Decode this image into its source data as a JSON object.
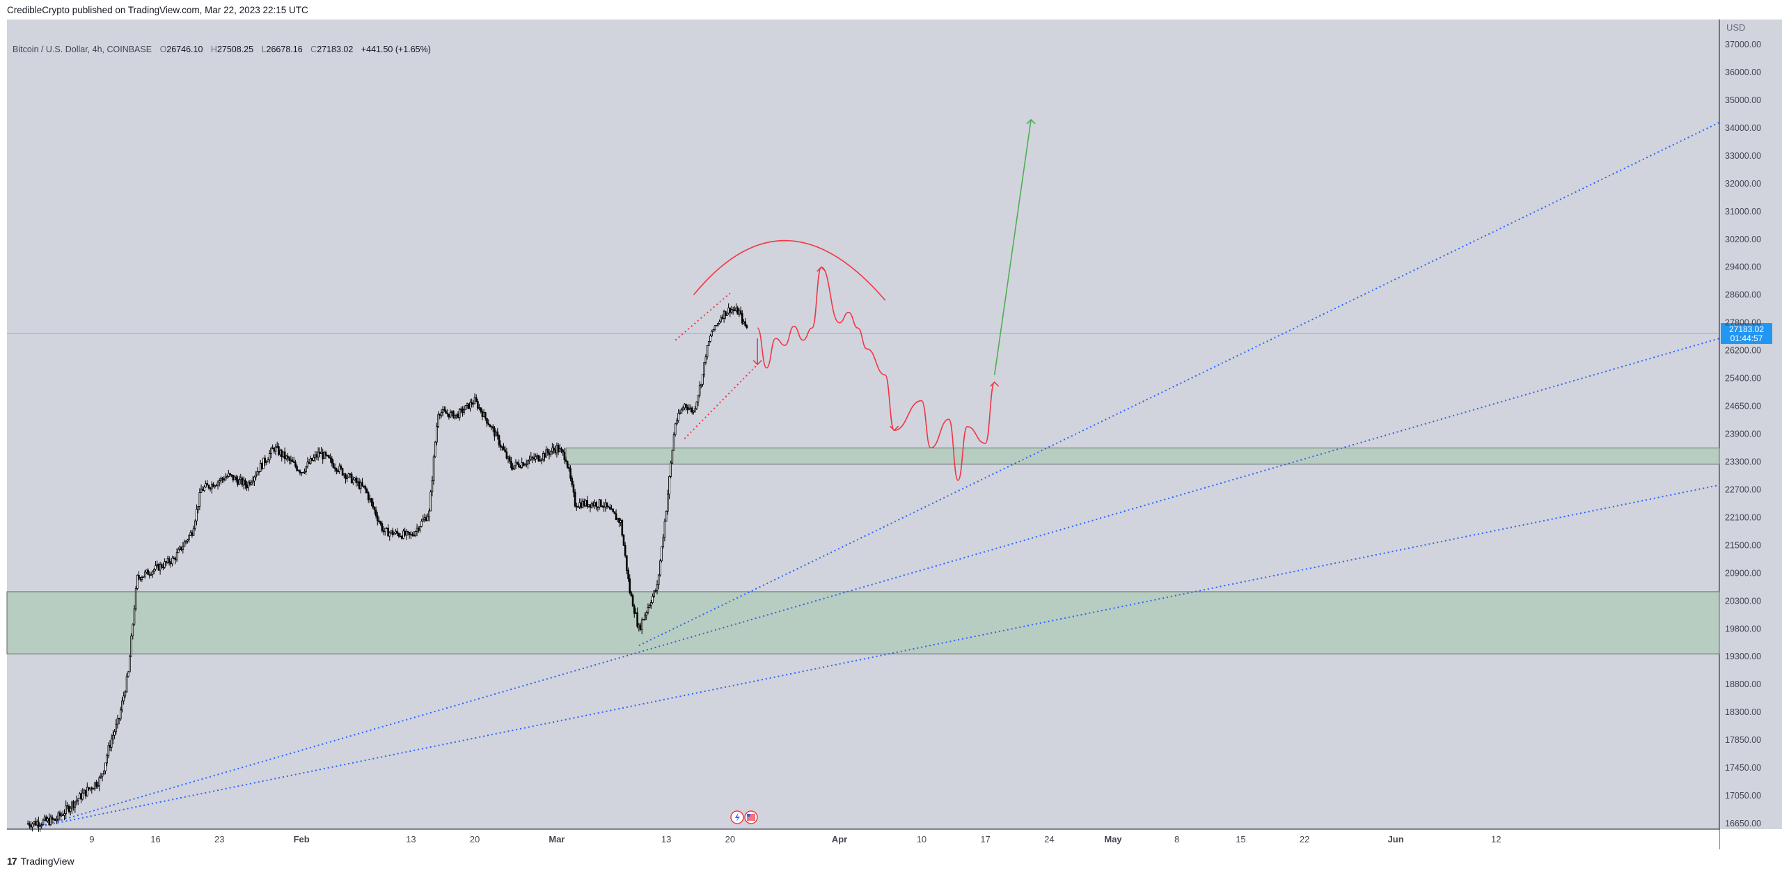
{
  "header": {
    "published_by": "CredibleCrypto published on TradingView.com, Mar 22, 2023 22:15 UTC"
  },
  "legend": {
    "symbol": "Bitcoin / U.S. Dollar, 4h, COINBASE",
    "open_key": "O",
    "open": "26746.10",
    "high_key": "H",
    "high": "27508.25",
    "low_key": "L",
    "low": "26678.16",
    "close_key": "C",
    "close": "27183.02",
    "change": "+441.50 (+1.65%)"
  },
  "footer": {
    "brand": "TradingView",
    "brand_icon": "tradingview-logo-icon"
  },
  "colors": {
    "chart_bg": "#d1d4dd",
    "zone_fill": "#b8cdc2",
    "trendline": "#2962ff",
    "projection": "#f23645",
    "target": "#4caf50",
    "price_tag": "#2196f3"
  },
  "chart_data": {
    "type": "candlestick",
    "instrument": "Bitcoin / U.S. Dollar",
    "interval": "4h",
    "exchange": "COINBASE",
    "currency": "USD",
    "ylim": [
      16500,
      37600
    ],
    "y_ticks": [
      "37000.00",
      "36000.00",
      "35000.00",
      "34000.00",
      "33000.00",
      "32000.00",
      "31000.00",
      "30200.00",
      "29400.00",
      "28600.00",
      "27800.00",
      "26200.00",
      "25400.00",
      "24650.00",
      "23900.00",
      "23300.00",
      "22700.00",
      "22100.00",
      "21500.00",
      "20900.00",
      "20300.00",
      "19800.00",
      "19300.00",
      "18800.00",
      "18300.00",
      "17850.00",
      "17450.00",
      "17050.00",
      "16650.00"
    ],
    "x_ticks": [
      "9",
      "16",
      "23",
      "Feb",
      "13",
      "20",
      "Mar",
      "13",
      "20",
      "Apr",
      "10",
      "17",
      "24",
      "May",
      "8",
      "15",
      "22",
      "Jun",
      "12"
    ],
    "last_price": {
      "value": 27183.02,
      "label": "27183.02",
      "countdown": "01:44:57"
    },
    "support_zones": [
      {
        "low": 23250,
        "high": 23600
      },
      {
        "low": 19350,
        "high": 20500
      }
    ],
    "price_path": [
      [
        "2023-01-02",
        16650
      ],
      [
        "2023-01-05",
        16700
      ],
      [
        "2023-01-07",
        16950
      ],
      [
        "2023-01-10",
        17300
      ],
      [
        "2023-01-11",
        17800
      ],
      [
        "2023-01-12",
        18200
      ],
      [
        "2023-01-13",
        19000
      ],
      [
        "2023-01-14",
        20800
      ],
      [
        "2023-01-16",
        21000
      ],
      [
        "2023-01-18",
        21200
      ],
      [
        "2023-01-20",
        21800
      ],
      [
        "2023-01-21",
        22700
      ],
      [
        "2023-01-24",
        23000
      ],
      [
        "2023-01-26",
        22800
      ],
      [
        "2023-01-29",
        23600
      ],
      [
        "2023-02-01",
        23100
      ],
      [
        "2023-02-03",
        23500
      ],
      [
        "2023-02-06",
        23000
      ],
      [
        "2023-02-08",
        22700
      ],
      [
        "2023-02-10",
        21800
      ],
      [
        "2023-02-13",
        21700
      ],
      [
        "2023-02-15",
        22200
      ],
      [
        "2023-02-16",
        24500
      ],
      [
        "2023-02-18",
        24400
      ],
      [
        "2023-02-20",
        24800
      ],
      [
        "2023-02-22",
        24000
      ],
      [
        "2023-02-24",
        23200
      ],
      [
        "2023-02-27",
        23400
      ],
      [
        "2023-03-01",
        23600
      ],
      [
        "2023-03-02",
        23400
      ],
      [
        "2023-03-03",
        22400
      ],
      [
        "2023-03-06",
        22400
      ],
      [
        "2023-03-08",
        22000
      ],
      [
        "2023-03-09",
        20500
      ],
      [
        "2023-03-10",
        19800
      ],
      [
        "2023-03-11",
        20200
      ],
      [
        "2023-03-12",
        20600
      ],
      [
        "2023-03-13",
        22300
      ],
      [
        "2023-03-14",
        24200
      ],
      [
        "2023-03-15",
        24700
      ],
      [
        "2023-03-16",
        24500
      ],
      [
        "2023-03-17",
        25500
      ],
      [
        "2023-03-18",
        27300
      ],
      [
        "2023-03-19",
        28000
      ],
      [
        "2023-03-20",
        28200
      ],
      [
        "2023-03-21",
        28100
      ],
      [
        "2023-03-22",
        27400
      ]
    ],
    "trendlines": [
      {
        "from": [
          "2023-03-10",
          19500
        ],
        "to_right_edge": 34200
      },
      {
        "from": [
          "2023-01-03",
          16600
        ],
        "to_right_edge": 26900
      },
      {
        "from": [
          "2023-01-03",
          16600
        ],
        "to_right_edge": 22800
      }
    ],
    "projected_path": [
      [
        "2023-03-23",
        27500
      ],
      [
        "2023-03-24",
        25700
      ],
      [
        "2023-03-25",
        26900
      ],
      [
        "2023-03-26",
        26500
      ],
      [
        "2023-03-27",
        27600
      ],
      [
        "2023-03-28",
        26800
      ],
      [
        "2023-03-29",
        27500
      ],
      [
        "2023-03-30",
        29400
      ],
      [
        "2023-04-01",
        27800
      ],
      [
        "2023-04-02",
        28100
      ],
      [
        "2023-04-03",
        27500
      ],
      [
        "2023-04-04",
        26300
      ],
      [
        "2023-04-06",
        25500
      ],
      [
        "2023-04-07",
        24000
      ],
      [
        "2023-04-10",
        24800
      ],
      [
        "2023-04-11",
        23600
      ],
      [
        "2023-04-13",
        24300
      ],
      [
        "2023-04-14",
        22900
      ],
      [
        "2023-04-15",
        24100
      ],
      [
        "2023-04-17",
        23700
      ],
      [
        "2023-04-18",
        25300
      ]
    ],
    "target_arrow": {
      "from": [
        "2023-04-18",
        25500
      ],
      "to": [
        "2023-04-22",
        34300
      ]
    }
  }
}
